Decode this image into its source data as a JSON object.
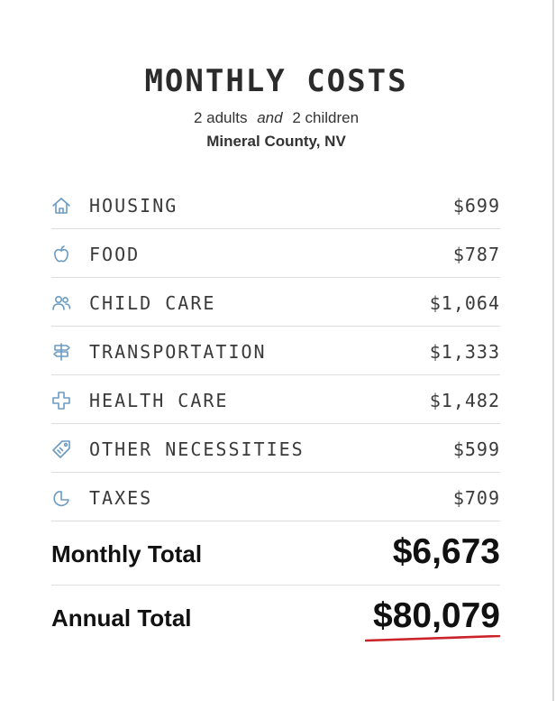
{
  "header": {
    "title": "MONTHLY COSTS",
    "household_adults": "2 adults",
    "household_conjunction": "and",
    "household_children": "2 children",
    "location": "Mineral County, NV"
  },
  "costs": [
    {
      "label": "HOUSING",
      "amount": "$699",
      "icon": "house-icon"
    },
    {
      "label": "FOOD",
      "amount": "$787",
      "icon": "apple-icon"
    },
    {
      "label": "CHILD CARE",
      "amount": "$1,064",
      "icon": "people-icon"
    },
    {
      "label": "TRANSPORTATION",
      "amount": "$1,333",
      "icon": "signpost-icon"
    },
    {
      "label": "HEALTH CARE",
      "amount": "$1,482",
      "icon": "medical-cross-icon"
    },
    {
      "label": "OTHER NECESSITIES",
      "amount": "$599",
      "icon": "tag-icon"
    },
    {
      "label": "TAXES",
      "amount": "$709",
      "icon": "pie-chart-icon"
    }
  ],
  "totals": {
    "monthly_label": "Monthly Total",
    "monthly_value": "$6,673",
    "annual_label": "Annual Total",
    "annual_value": "$80,079"
  },
  "colors": {
    "icon": "#6b9bc3",
    "text": "#3a3a3a",
    "underline_accent": "#cc2229"
  }
}
